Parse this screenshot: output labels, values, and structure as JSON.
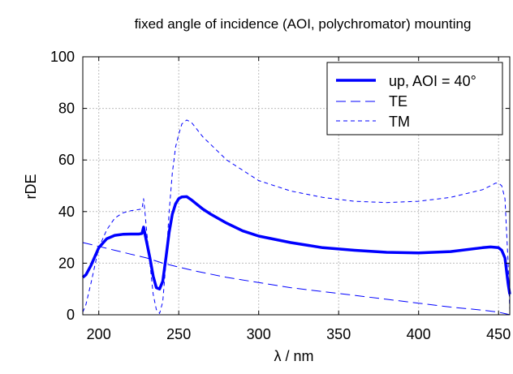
{
  "chart_data": {
    "type": "line",
    "title": "fixed angle of incidence (AOI, polychromator) mounting",
    "xlabel": "λ / nm",
    "ylabel": "rDE",
    "xlim": [
      190,
      457
    ],
    "ylim": [
      0,
      100
    ],
    "xticks": [
      200,
      250,
      300,
      350,
      400,
      450
    ],
    "yticks": [
      0,
      20,
      40,
      60,
      80,
      100
    ],
    "grid": true,
    "legend_position": "top-right",
    "series": [
      {
        "name": "up, AOI = 40°",
        "color": "#0000ff",
        "style": "solid-thick",
        "x": [
          190,
          192,
          195,
          200,
          205,
          210,
          215,
          220,
          225,
          227,
          228,
          229,
          230,
          232,
          234,
          236,
          238,
          240,
          242,
          244,
          246,
          248,
          250,
          252,
          255,
          258,
          260,
          265,
          270,
          280,
          290,
          300,
          320,
          340,
          360,
          380,
          400,
          420,
          440,
          445,
          450,
          452,
          454,
          456,
          457
        ],
        "y": [
          14.5,
          15.5,
          19,
          26,
          29.5,
          30.8,
          31.2,
          31.3,
          31.3,
          31.5,
          34,
          31,
          28,
          22,
          15,
          10.5,
          10,
          13,
          22,
          32,
          39,
          43,
          45,
          45.7,
          45.8,
          44.5,
          43.5,
          41,
          39,
          35.5,
          32.5,
          30.5,
          28,
          26,
          25,
          24.2,
          24,
          24.5,
          26,
          26.3,
          26,
          25,
          22,
          12,
          8
        ]
      },
      {
        "name": "TE",
        "color": "#0000ff",
        "style": "long-dash",
        "x": [
          190,
          200,
          210,
          220,
          230,
          240,
          250,
          260,
          280,
          300,
          320,
          340,
          360,
          380,
          400,
          420,
          440,
          450,
          455,
          457
        ],
        "y": [
          28,
          26.5,
          25,
          23.5,
          22,
          20,
          18.5,
          17,
          14.5,
          12.5,
          10.5,
          9,
          7.5,
          6,
          4.5,
          3,
          1.8,
          1,
          0.3,
          0
        ]
      },
      {
        "name": "TM",
        "color": "#0000ff",
        "style": "short-dash",
        "x": [
          190,
          192,
          195,
          200,
          205,
          210,
          215,
          220,
          225,
          227,
          228,
          229,
          230,
          232,
          234,
          236,
          238,
          240,
          242,
          244,
          246,
          248,
          250,
          252,
          255,
          258,
          260,
          265,
          270,
          280,
          300,
          320,
          340,
          360,
          380,
          400,
          420,
          440,
          445,
          448,
          450,
          452,
          454,
          456,
          457
        ],
        "y": [
          1,
          4,
          12,
          26,
          33,
          37.5,
          39.5,
          40.3,
          40.8,
          41,
          45,
          39,
          32,
          20,
          8,
          2,
          0.5,
          5,
          20,
          40,
          55,
          65,
          70,
          74,
          75.5,
          74.5,
          73,
          69,
          66,
          60,
          52,
          48,
          45.5,
          44,
          43.5,
          44,
          45.5,
          48.5,
          50,
          51,
          51,
          50,
          45,
          20,
          2
        ]
      }
    ]
  }
}
